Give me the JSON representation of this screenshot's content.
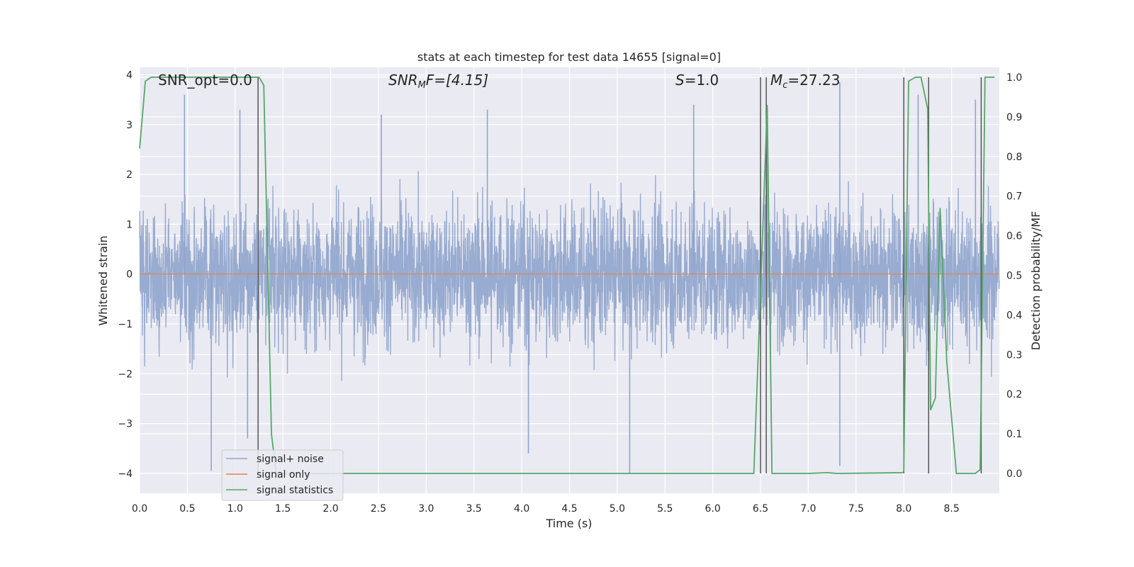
{
  "chart_data": {
    "type": "line",
    "title": "stats at each timestep for test data 14655 [signal=0]",
    "xlabel": "Time (s)",
    "ylabel": "Whitened strain",
    "y2label": "Detection probability/MF",
    "xlim": [
      0.0,
      9.0
    ],
    "ylim": [
      -4.4,
      4.15
    ],
    "y2lim": [
      -0.05,
      1.025
    ],
    "xticks": [
      "0.0",
      "0.5",
      "1.0",
      "1.5",
      "2.0",
      "2.5",
      "3.0",
      "3.5",
      "4.0",
      "4.5",
      "5.0",
      "5.5",
      "6.0",
      "6.5",
      "7.0",
      "7.5",
      "8.0",
      "8.5"
    ],
    "yticks": [
      "4",
      "3",
      "2",
      "1",
      "0",
      "−1",
      "−2",
      "−3",
      "−4"
    ],
    "y2ticks": [
      "1.0",
      "0.9",
      "0.8",
      "0.7",
      "0.6",
      "0.5",
      "0.4",
      "0.3",
      "0.2",
      "0.1",
      "0.0"
    ],
    "grid": true,
    "annotations": {
      "snr_opt": "SNR_opt=0.0",
      "snr_mf_prefix": "SNR",
      "snr_mf_sub": "M",
      "snr_mf_suffix": "F=[4.15]",
      "s_name": "S",
      "s_value": "=1.0",
      "mc_name": "M",
      "mc_sub": "c",
      "mc_value": "=27.23"
    },
    "legend": {
      "position": "lower-left",
      "entries": [
        "signal+ noise",
        "signal only",
        "signal statistics"
      ]
    },
    "colors": {
      "noise": "#8fa4cc",
      "signal": "#dd8452",
      "stats": "#55a868",
      "vlines": "#555555",
      "background": "#eaeaf2",
      "grid": "#ffffff"
    },
    "series": [
      {
        "name": "signal+ noise",
        "axis": "left",
        "envelope_note": "dense whitened noise, typical range ±2, spikes up to ~3.8 and down to ~-4",
        "spikes": [
          {
            "x": 0.47,
            "y": 3.6
          },
          {
            "x": 0.75,
            "y": -3.95
          },
          {
            "x": 1.05,
            "y": 3.3
          },
          {
            "x": 1.13,
            "y": -3.3
          },
          {
            "x": 2.53,
            "y": 3.2
          },
          {
            "x": 3.64,
            "y": 3.3
          },
          {
            "x": 4.07,
            "y": -3.6
          },
          {
            "x": 5.13,
            "y": -4.0
          },
          {
            "x": 5.8,
            "y": 3.4
          },
          {
            "x": 7.33,
            "y": 3.85
          },
          {
            "x": 7.33,
            "y": -3.85
          },
          {
            "x": 8.15,
            "y": 3.6
          },
          {
            "x": 8.75,
            "y": 3.5
          },
          {
            "x": 6.57,
            "y": 3.1
          }
        ]
      },
      {
        "name": "signal only",
        "axis": "left",
        "x": [
          0.0,
          9.0
        ],
        "y": [
          0.0,
          0.0
        ]
      },
      {
        "name": "signal statistics",
        "axis": "right",
        "x": [
          0.0,
          0.06,
          0.12,
          0.2,
          0.5,
          1.0,
          1.2,
          1.25,
          1.3,
          1.38,
          1.43,
          1.5,
          2.0,
          3.0,
          4.0,
          5.0,
          6.0,
          6.43,
          6.5,
          6.57,
          6.62,
          6.7,
          7.0,
          7.2,
          7.3,
          7.98,
          8.0,
          8.05,
          8.12,
          8.18,
          8.25,
          8.28,
          8.33,
          8.38,
          8.45,
          8.55,
          8.75,
          8.8,
          8.85,
          8.9,
          8.95
        ],
        "y": [
          0.82,
          0.99,
          1.0,
          1.0,
          1.0,
          1.0,
          1.0,
          1.0,
          0.98,
          0.1,
          0.0,
          0.0,
          0.0,
          0.0,
          0.0,
          0.0,
          0.0,
          0.0,
          0.46,
          0.93,
          0.0,
          0.0,
          0.0,
          0.002,
          0.0,
          0.002,
          0.004,
          0.99,
          1.0,
          1.0,
          0.92,
          0.16,
          0.19,
          0.67,
          0.28,
          0.0,
          0.0,
          0.01,
          1.0,
          1.0,
          1.0
        ]
      }
    ],
    "vlines": [
      1.24,
      6.5,
      6.56,
      8.0,
      8.26,
      8.81
    ]
  }
}
